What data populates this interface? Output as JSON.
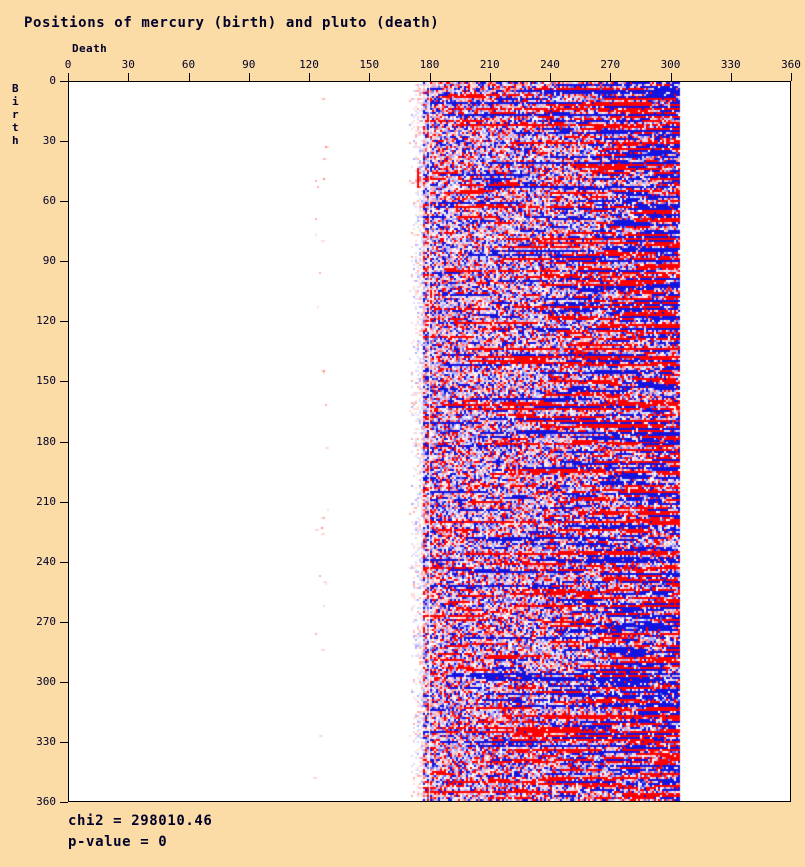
{
  "title": "Positions of mercury (birth) and pluto (death)",
  "axes": {
    "x_label": "Death",
    "y_label": "Birth"
  },
  "stats": {
    "chi2": "chi2 = 298010.46",
    "p_value": "p-value = 0"
  },
  "colors": {
    "background": "#fbdca6",
    "text": "#000028",
    "plot_background": "#ffffff",
    "plot_border": "#000000"
  },
  "chart_data": {
    "type": "heatmap",
    "title": "Positions of mercury (birth) and pluto (death)",
    "xlabel": "Death",
    "ylabel": "Birth",
    "xlim": [
      0,
      360
    ],
    "ylim": [
      0,
      360
    ],
    "x_ticks": [
      0,
      30,
      60,
      90,
      120,
      150,
      180,
      210,
      240,
      270,
      300,
      330,
      360
    ],
    "y_ticks": [
      0,
      30,
      60,
      90,
      120,
      150,
      180,
      210,
      240,
      270,
      300,
      330,
      360
    ],
    "grid": false,
    "legend": false,
    "cell_size_deg": 1,
    "description": "Dense speckled band of red/blue 1-degree cells covering all birth positions 0-360 but only death positions ~172-305, with long horizontal saturated streaks (denser toward death 240-305), a faint fade-in at the left edge of the band, sparse light-pink outlier specks near death 123-129, and a solid red edge mark at death 174, birth 43-52.",
    "stats": {
      "chi2": 298010.46,
      "p_value": 0
    },
    "render": {
      "seed": 1337,
      "fade_start": 170,
      "dense_start": 177,
      "band_end": 304,
      "density": 0.91,
      "fade_peak_density": 0.55,
      "streak_base_prob": 0.011,
      "streak_ramp_from": 230,
      "streak_ramp_rate": 0.00095,
      "mega_row_prob": 0.17,
      "red_levels": [
        "#ff0000",
        "#ff6666",
        "#ffb0b0",
        "#ffdcdc"
      ],
      "blue_levels": [
        "#1414e0",
        "#6666ee",
        "#b0b0ff",
        "#dcdcff"
      ],
      "speck_cluster": {
        "death_min": 123,
        "death_max": 129,
        "count": 26,
        "colors": [
          "#ff8f82",
          "#ffb0b0",
          "#ffdcdc"
        ]
      },
      "red_edge_mark": {
        "death": 174,
        "birth_start": 43,
        "birth_end": 52
      }
    }
  }
}
